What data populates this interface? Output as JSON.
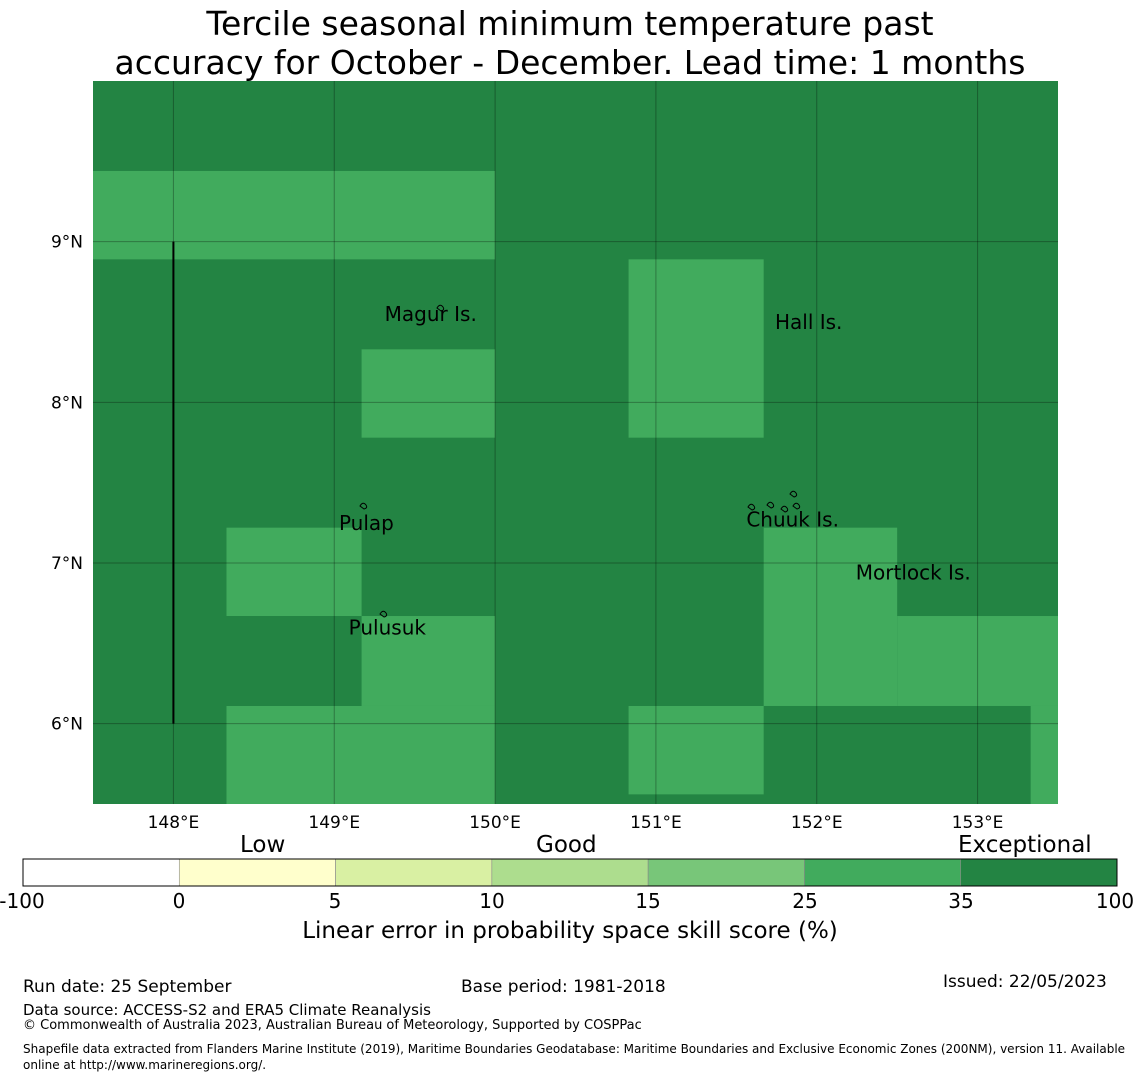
{
  "title": {
    "line1": "Tercile seasonal minimum temperature past",
    "line2": "accuracy for October - December. Lead time: 1 months"
  },
  "map": {
    "axes": {
      "lon_ticks": [
        "148°E",
        "149°E",
        "150°E",
        "151°E",
        "152°E",
        "153°E"
      ],
      "lat_ticks": [
        "9°N",
        "8°N",
        "7°N",
        "6°N"
      ],
      "lon_range": [
        147.5,
        153.5
      ],
      "lat_range": [
        5.5,
        10.0
      ]
    },
    "background_category": "Exceptional",
    "cells_good": [
      {
        "lon": [
          147.5,
          150.0
        ],
        "lat": [
          8.89,
          9.44
        ]
      },
      {
        "lon": [
          149.17,
          150.0
        ],
        "lat": [
          7.78,
          8.33
        ]
      },
      {
        "lon": [
          150.83,
          151.67
        ],
        "lat": [
          7.78,
          8.89
        ]
      },
      {
        "lon": [
          148.33,
          149.17
        ],
        "lat": [
          6.67,
          7.22
        ]
      },
      {
        "lon": [
          149.17,
          150.0
        ],
        "lat": [
          6.11,
          6.67
        ]
      },
      {
        "lon": [
          151.67,
          152.5
        ],
        "lat": [
          6.11,
          7.22
        ]
      },
      {
        "lon": [
          152.5,
          153.5
        ],
        "lat": [
          6.11,
          6.67
        ]
      },
      {
        "lon": [
          148.33,
          150.0
        ],
        "lat": [
          5.5,
          6.11
        ]
      },
      {
        "lon": [
          150.83,
          151.67
        ],
        "lat": [
          5.56,
          6.11
        ]
      },
      {
        "lon": [
          153.33,
          153.5
        ],
        "lat": [
          5.5,
          6.11
        ]
      }
    ],
    "places": [
      {
        "name": "Magur Is.",
        "lon": 149.6,
        "lat": 8.55
      },
      {
        "name": "Hall Is.",
        "lon": 151.95,
        "lat": 8.5
      },
      {
        "name": "Pulap",
        "lon": 149.2,
        "lat": 7.25
      },
      {
        "name": "Chuuk Is.",
        "lon": 151.85,
        "lat": 7.27
      },
      {
        "name": "Mortlock Is.",
        "lon": 152.6,
        "lat": 6.94
      },
      {
        "name": "Pulusuk",
        "lon": 149.33,
        "lat": 6.6
      }
    ],
    "boundary_line": {
      "lon": 148.0,
      "lat": [
        6.0,
        9.0
      ]
    }
  },
  "colorbar": {
    "categories": [
      "Low",
      "Good",
      "Exceptional"
    ],
    "ticks": [
      "-100",
      "0",
      "5",
      "10",
      "15",
      "25",
      "35",
      "100"
    ],
    "colors": [
      "#ffffff",
      "#ffffcc",
      "#d9f0a3",
      "#addd8e",
      "#78c679",
      "#41ab5d",
      "#238443"
    ],
    "label": "Linear error in probability space skill score (%)"
  },
  "footer": {
    "run_date": "Run date: 25 September",
    "base_period": "Base period: 1981-2018",
    "issued": "Issued: 22/05/2023",
    "data_source": "Data source: ACCESS-S2 and ERA5 Climate Reanalysis",
    "copyright": "© Commonwealth of Australia 2023, Australian Bureau of Meteorology, Supported by COSPPac",
    "shapefile": "Shapefile data extracted from Flanders Marine Institute (2019), Maritime Boundaries Geodatabase: Maritime Boundaries and Exclusive Economic Zones (200NM), version 11. Available online at http://www.marineregions.org/."
  }
}
